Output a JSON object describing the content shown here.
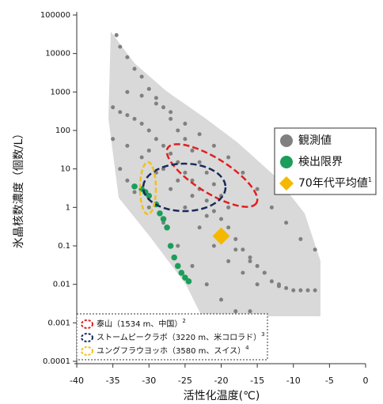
{
  "chart_data": {
    "type": "scatter",
    "x_label": "活性化温度(℃)",
    "y_label": "氷晶核数濃度（個数/L）",
    "xlim": [
      -40,
      0
    ],
    "xticks": [
      -40,
      -35,
      -30,
      -25,
      -20,
      -15,
      -10,
      -5,
      0
    ],
    "ylim": [
      0.0001,
      100000
    ],
    "yticks": [
      0.0001,
      0.001,
      0.01,
      0.1,
      1,
      10,
      100,
      1000,
      10000,
      100000
    ],
    "log_y": true,
    "legend_position": "right",
    "series": [
      {
        "name": "観測値",
        "color": "#808080",
        "marker": "circle",
        "x": [
          -34.5,
          -34,
          -33,
          -32,
          -31,
          -30,
          -29,
          -28,
          -27,
          -26,
          -25,
          -24,
          -23,
          -22,
          -21,
          -20,
          -19,
          -35,
          -34,
          -33,
          -32,
          -31,
          -30,
          -29,
          -28,
          -27,
          -26,
          -25,
          -24,
          -23,
          -22,
          -21,
          -20,
          -19,
          -18,
          -17,
          -16,
          -15,
          -14,
          -13,
          -12,
          -11,
          -10,
          -9,
          -8,
          -7,
          -33,
          -31,
          -29,
          -27,
          -25,
          -23,
          -21,
          -19,
          -17,
          -15,
          -13,
          -11,
          -9,
          -7,
          -35,
          -33,
          -31,
          -29,
          -27,
          -25,
          -23,
          -21,
          -19,
          -17,
          -15,
          -34,
          -33,
          -32,
          -30,
          -28,
          -26,
          -24,
          -22,
          -20,
          -18,
          -16,
          -30,
          -28,
          -26,
          -24,
          -22,
          -20,
          -18,
          -16,
          -14,
          -12
        ],
        "y": [
          30000,
          15000,
          8000,
          4000,
          2500,
          1200,
          700,
          400,
          200,
          100,
          60,
          30,
          15,
          8,
          4,
          2,
          1,
          400,
          300,
          250,
          200,
          150,
          100,
          60,
          40,
          25,
          15,
          8,
          5,
          3,
          1.5,
          0.8,
          0.5,
          0.3,
          0.15,
          0.08,
          0.05,
          0.03,
          0.02,
          0.012,
          0.009,
          0.008,
          0.007,
          0.007,
          0.007,
          0.007,
          1000,
          800,
          500,
          300,
          150,
          80,
          40,
          20,
          8,
          3,
          1,
          0.4,
          0.15,
          0.08,
          60,
          40,
          20,
          8,
          3,
          1,
          0.3,
          0.1,
          0.04,
          0.02,
          0.01,
          10,
          5,
          2.5,
          1.0,
          0.4,
          0.1,
          0.03,
          0.01,
          0.004,
          0.002,
          0.002,
          30,
          10,
          5,
          2,
          0.6,
          0.2,
          0.08,
          0.04,
          0.02,
          0.01
        ]
      },
      {
        "name": "検出限界",
        "color": "#1a9e5a",
        "marker": "circle",
        "x": [
          -32,
          -31,
          -30.5,
          -30,
          -29,
          -28.5,
          -28,
          -27.5,
          -27,
          -26.5,
          -26,
          -25.5,
          -25,
          -24.5
        ],
        "y": [
          3.5,
          3,
          2.5,
          2,
          1.2,
          0.7,
          0.5,
          0.3,
          0.1,
          0.05,
          0.03,
          0.02,
          0.015,
          0.012
        ]
      },
      {
        "name": "70年代平均値",
        "note": "1",
        "color": "#f5b800",
        "marker": "diamond",
        "x": [
          -20
        ],
        "y": [
          0.18
        ]
      }
    ],
    "annotations": [
      {
        "text": "泰山（1534 m、中国）",
        "note": "2",
        "color": "#e02020"
      },
      {
        "text": "ストームピークラボ（3220 m、米コロラド）",
        "note": "3",
        "color": "#1a2a5a"
      },
      {
        "text": "ユングフラウヨッホ（3580 m、スイス）",
        "note": "4",
        "color": "#f0c020"
      }
    ]
  }
}
